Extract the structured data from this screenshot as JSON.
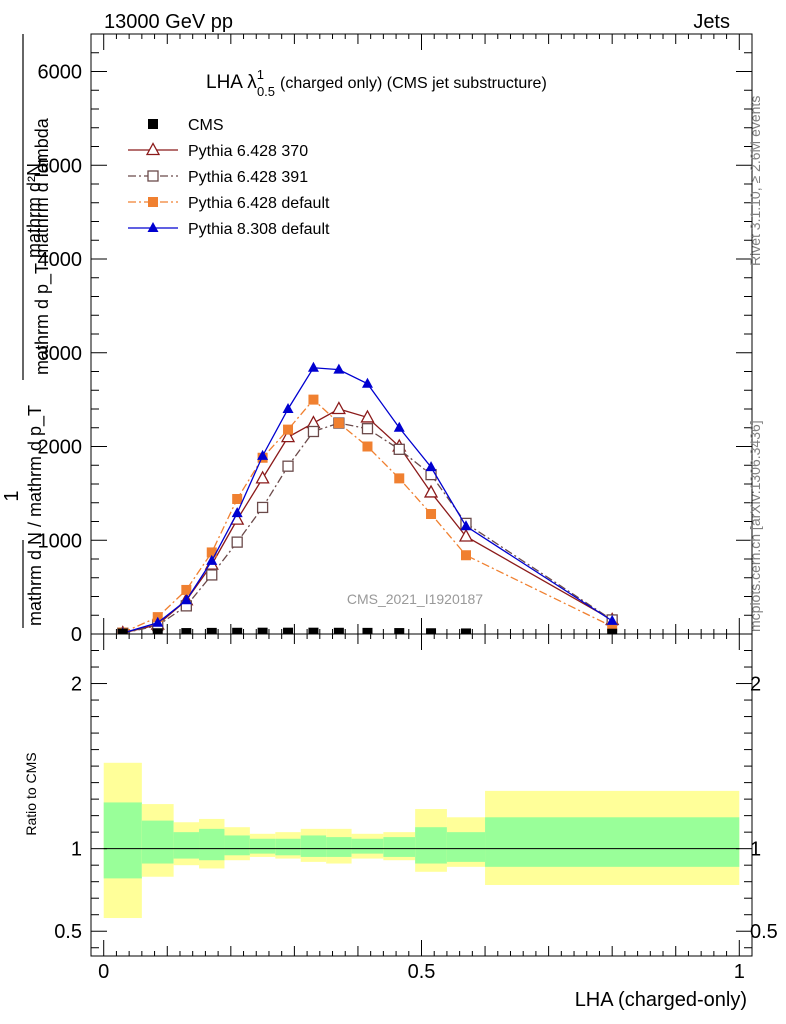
{
  "chart_data": {
    "type": "line",
    "header_left": "13000 GeV pp",
    "header_right": "Jets",
    "title_main": "LHA λ",
    "title_sup": "1",
    "title_sub": "0.5",
    "title_rest": "(charged only) (CMS jet substructure)",
    "ylabel_top": "mathrm d²N",
    "ylabel_bottom": "mathrm d p_T mathrm d lambda",
    "ylabel_one": "1",
    "ylabel_norm": "mathrm d N / mathrm d p_T",
    "xlabel": "LHA (charged-only)",
    "ratio_ylabel": "Ratio to CMS",
    "watermark": "CMS_2021_I1920187",
    "side_rivet": "Rivet 3.1.10, ≥ 2.6M events",
    "side_mcplots": "mcplots.cern.ch [arXiv:1306.3436]",
    "xlim": [
      -0.02,
      1.02
    ],
    "ylim": [
      0,
      6400
    ],
    "ratio_ylim": [
      0.35,
      2.3
    ],
    "xticks": [
      0,
      0.5,
      1
    ],
    "xtick_labels": [
      "0",
      "0.5",
      "1"
    ],
    "yticks": [
      0,
      1000,
      2000,
      3000,
      4000,
      5000,
      6000
    ],
    "ytick_labels": [
      "0",
      "1000",
      "2000",
      "3000",
      "4000",
      "5000",
      "6000"
    ],
    "ratio_yticks": [
      0.5,
      1,
      2
    ],
    "ratio_ytick_labels": [
      "0.5",
      "1",
      "2"
    ],
    "series": [
      {
        "name": "CMS",
        "color": "#000000",
        "marker": "square-filled",
        "line": "none",
        "x": [
          0.03,
          0.085,
          0.13,
          0.17,
          0.21,
          0.25,
          0.29,
          0.33,
          0.37,
          0.415,
          0.465,
          0.515,
          0.57,
          0.8
        ],
        "y": [
          5,
          8,
          10,
          12,
          13,
          14,
          14,
          14,
          13,
          12,
          10,
          8,
          6,
          3
        ]
      },
      {
        "name": "Pythia 6.428 370",
        "color": "#8b1a1a",
        "marker": "triangle-open",
        "line": "solid",
        "x": [
          0.03,
          0.085,
          0.13,
          0.17,
          0.21,
          0.25,
          0.29,
          0.33,
          0.37,
          0.415,
          0.465,
          0.515,
          0.57,
          0.8
        ],
        "y": [
          10,
          100,
          360,
          740,
          1220,
          1660,
          2100,
          2250,
          2400,
          2310,
          2000,
          1510,
          1040,
          150
        ]
      },
      {
        "name": "Pythia 6.428 391",
        "color": "#6b4a4a",
        "marker": "square-open",
        "line": "dashdot",
        "x": [
          0.03,
          0.085,
          0.13,
          0.17,
          0.21,
          0.25,
          0.29,
          0.33,
          0.37,
          0.415,
          0.465,
          0.515,
          0.57,
          0.8
        ],
        "y": [
          8,
          90,
          300,
          630,
          980,
          1350,
          1790,
          2160,
          2250,
          2190,
          1970,
          1700,
          1180,
          150
        ]
      },
      {
        "name": "Pythia 6.428 default",
        "color": "#f08030",
        "marker": "square-filled",
        "line": "dashdot",
        "x": [
          0.03,
          0.085,
          0.13,
          0.17,
          0.21,
          0.25,
          0.29,
          0.33,
          0.37,
          0.415,
          0.465,
          0.515,
          0.57,
          0.8
        ],
        "y": [
          15,
          180,
          470,
          870,
          1440,
          1880,
          2180,
          2500,
          2250,
          2000,
          1660,
          1280,
          840,
          80
        ]
      },
      {
        "name": "Pythia 8.308 default",
        "color": "#0000d0",
        "marker": "triangle-filled",
        "line": "solid",
        "x": [
          0.03,
          0.085,
          0.13,
          0.17,
          0.21,
          0.25,
          0.29,
          0.33,
          0.37,
          0.415,
          0.465,
          0.515,
          0.57,
          0.8
        ],
        "y": [
          10,
          120,
          360,
          780,
          1290,
          1900,
          2400,
          2840,
          2820,
          2670,
          2200,
          1780,
          1150,
          140
        ]
      }
    ],
    "ratio_bands": {
      "bins": [
        [
          0,
          0.06
        ],
        [
          0.06,
          0.11
        ],
        [
          0.11,
          0.15
        ],
        [
          0.15,
          0.19
        ],
        [
          0.19,
          0.23
        ],
        [
          0.23,
          0.27
        ],
        [
          0.27,
          0.31
        ],
        [
          0.31,
          0.35
        ],
        [
          0.35,
          0.39
        ],
        [
          0.39,
          0.44
        ],
        [
          0.44,
          0.49
        ],
        [
          0.49,
          0.54
        ],
        [
          0.54,
          0.6
        ],
        [
          0.6,
          1.0
        ]
      ],
      "yellow": [
        [
          0.58,
          1.52
        ],
        [
          0.83,
          1.27
        ],
        [
          0.9,
          1.16
        ],
        [
          0.88,
          1.18
        ],
        [
          0.93,
          1.13
        ],
        [
          0.95,
          1.09
        ],
        [
          0.94,
          1.1
        ],
        [
          0.92,
          1.12
        ],
        [
          0.91,
          1.12
        ],
        [
          0.94,
          1.09
        ],
        [
          0.93,
          1.1
        ],
        [
          0.86,
          1.24
        ],
        [
          0.89,
          1.19
        ],
        [
          0.78,
          1.35
        ]
      ],
      "green": [
        [
          0.82,
          1.28
        ],
        [
          0.91,
          1.17
        ],
        [
          0.94,
          1.1
        ],
        [
          0.93,
          1.12
        ],
        [
          0.96,
          1.08
        ],
        [
          0.97,
          1.06
        ],
        [
          0.96,
          1.06
        ],
        [
          0.95,
          1.08
        ],
        [
          0.95,
          1.07
        ],
        [
          0.97,
          1.06
        ],
        [
          0.95,
          1.07
        ],
        [
          0.91,
          1.13
        ],
        [
          0.92,
          1.1
        ],
        [
          0.89,
          1.19
        ]
      ],
      "yellow_color": "#ffff99",
      "green_color": "#99ff99"
    }
  }
}
